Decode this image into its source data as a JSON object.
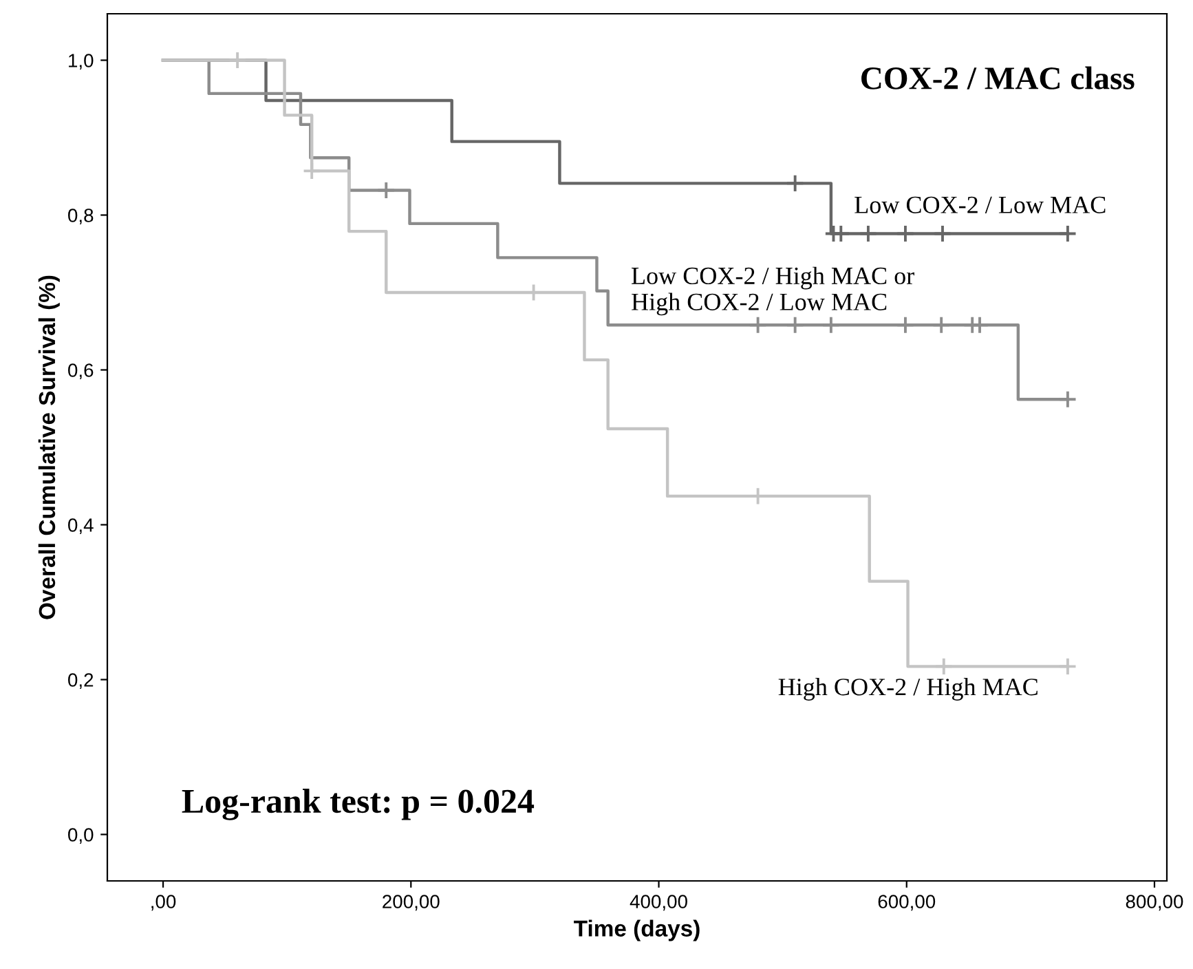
{
  "chart_data": {
    "type": "step",
    "title": "COX-2 / MAC class",
    "xlabel": "Time (days)",
    "ylabel": "Overall Cumulative Survival (%)",
    "xlim": [
      -45,
      810
    ],
    "ylim": [
      -0.06,
      1.06
    ],
    "xticks": [
      {
        "value": 0,
        "label": ",00"
      },
      {
        "value": 200,
        "label": "200,00"
      },
      {
        "value": 400,
        "label": "400,00"
      },
      {
        "value": 600,
        "label": "600,00"
      },
      {
        "value": 800,
        "label": "800,00"
      }
    ],
    "yticks": [
      {
        "value": 0,
        "label": "0,0"
      },
      {
        "value": 0.2,
        "label": "0,2"
      },
      {
        "value": 0.4,
        "label": "0,4"
      },
      {
        "value": 0.6,
        "label": "0,6"
      },
      {
        "value": 0.8,
        "label": "0,8"
      },
      {
        "value": 1.0,
        "label": "1,0"
      }
    ],
    "grid": false,
    "legend": false,
    "line_style": "solid",
    "series": [
      {
        "name": "Low COX-2 / Low MAC",
        "color": "#666666",
        "x": [
          0,
          83,
          233,
          320,
          539,
          730
        ],
        "values": [
          1.0,
          0.948,
          0.895,
          0.841,
          0.776,
          0.776
        ]
      },
      {
        "name": "Low COX-2 / High MAC or\nHigh COX-2 / Low MAC",
        "color": "#8c8c8c",
        "x": [
          0,
          37,
          111,
          119,
          150,
          199,
          270,
          350,
          359,
          690,
          730
        ],
        "values": [
          1.0,
          0.957,
          0.917,
          0.874,
          0.832,
          0.789,
          0.745,
          0.702,
          0.658,
          0.562,
          0.562
        ]
      },
      {
        "name": "High COX-2 / High MAC",
        "color": "#c4c4c4",
        "x": [
          0,
          98,
          120,
          150,
          180,
          340,
          359,
          407,
          570,
          601,
          730
        ],
        "values": [
          1.0,
          0.929,
          0.857,
          0.779,
          0.7,
          0.613,
          0.524,
          0.437,
          0.327,
          0.217,
          0.217
        ]
      },
      {
        "type": "scatter",
        "marker": "cross",
        "color": "#666666",
        "x": [
          510,
          541,
          547,
          569,
          599,
          629,
          730
        ],
        "values": [
          0.841,
          0.776,
          0.776,
          0.776,
          0.776,
          0.776,
          0.776
        ]
      },
      {
        "type": "scatter",
        "marker": "cross",
        "color": "#8c8c8c",
        "x": [
          180,
          480,
          510,
          539,
          599,
          628,
          653,
          659,
          730
        ],
        "values": [
          0.832,
          0.658,
          0.658,
          0.658,
          0.658,
          0.658,
          0.658,
          0.658,
          0.562
        ]
      },
      {
        "type": "scatter",
        "marker": "cross",
        "color": "#c4c4c4",
        "x": [
          60,
          120,
          299,
          480,
          630,
          730
        ],
        "values": [
          1.0,
          0.857,
          0.7,
          0.437,
          0.217,
          0.217
        ]
      }
    ],
    "annotations": [
      "Log-rank test: p = 0.024"
    ]
  }
}
